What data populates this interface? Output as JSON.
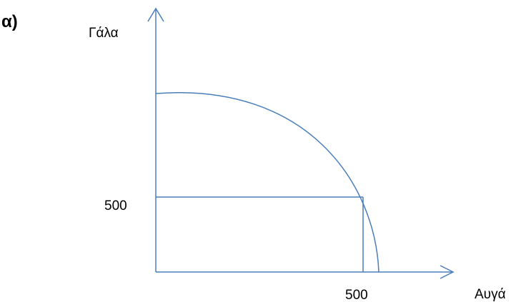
{
  "part_label": "α)",
  "y_axis_label": "Γάλα",
  "x_axis_label": "Αυγά",
  "y_marker_label": "500",
  "x_marker_label": "500",
  "colors": {
    "lines": "#4a7ebb",
    "text": "#000000",
    "background": "#ffffff"
  }
}
